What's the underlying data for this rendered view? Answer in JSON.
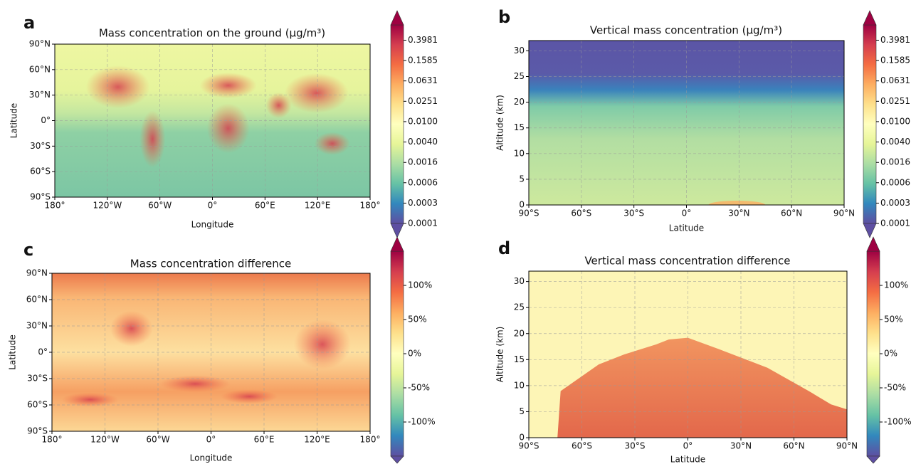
{
  "chart_data": [
    {
      "type": "heatmap",
      "letter": "a",
      "title": "Mass concentration on the ground (μg/m³)",
      "xlabel": "Longitude",
      "ylabel": "Latitude",
      "xlim": [
        -180,
        180
      ],
      "ylim": [
        -90,
        90
      ],
      "xticks": [
        {
          "value": -180,
          "label": "180°"
        },
        {
          "value": -120,
          "label": "120°W"
        },
        {
          "value": -60,
          "label": "60°W"
        },
        {
          "value": 0,
          "label": "0°"
        },
        {
          "value": 60,
          "label": "60°E"
        },
        {
          "value": 120,
          "label": "120°E"
        },
        {
          "value": 180,
          "label": "180°"
        }
      ],
      "yticks": [
        {
          "value": -90,
          "label": "90°S"
        },
        {
          "value": -60,
          "label": "60°S"
        },
        {
          "value": -30,
          "label": "30°S"
        },
        {
          "value": 0,
          "label": "0°"
        },
        {
          "value": 30,
          "label": "30°N"
        },
        {
          "value": 60,
          "label": "60°N"
        },
        {
          "value": 90,
          "label": "90°N"
        }
      ],
      "grid": true,
      "colorbar": {
        "scale": "log",
        "clim": [
          0.0001,
          0.7943
        ],
        "ticks": [
          0.3981,
          0.1585,
          0.0631,
          0.0251,
          {
            "value": 0.01,
            "label": "0.0100"
          },
          {
            "value": 0.00398,
            "label": "0.0040"
          },
          {
            "value": 0.00158,
            "label": "0.0016"
          },
          {
            "value": 0.000631,
            "label": "0.0006"
          },
          {
            "value": 0.000251,
            "label": "0.0003"
          },
          0.0001
        ],
        "colors": [
          "#5e4fa2",
          "#3288bd",
          "#66c2a5",
          "#abdda4",
          "#e6f598",
          "#ffffbf",
          "#fee08b",
          "#fdae61",
          "#f46d43",
          "#d53e4f",
          "#9e0142"
        ]
      }
    },
    {
      "type": "heatmap",
      "letter": "b",
      "title": "Vertical mass concentration (μg/m³)",
      "xlabel": "Latitude",
      "ylabel": "Altitude (km)",
      "xlim": [
        -90,
        90
      ],
      "ylim": [
        0,
        32
      ],
      "xticks": [
        {
          "value": -90,
          "label": "90°S"
        },
        {
          "value": -60,
          "label": "60°S"
        },
        {
          "value": -30,
          "label": "30°S"
        },
        {
          "value": 0,
          "label": "0°"
        },
        {
          "value": 30,
          "label": "30°N"
        },
        {
          "value": 60,
          "label": "60°N"
        },
        {
          "value": 90,
          "label": "90°N"
        }
      ],
      "yticks": [
        0,
        5,
        10,
        15,
        20,
        25,
        30
      ],
      "grid": true,
      "colorbar": {
        "scale": "log",
        "clim": [
          0.0001,
          0.7943
        ],
        "ticks": [
          0.3981,
          0.1585,
          0.0631,
          0.0251,
          {
            "value": 0.01,
            "label": "0.0100"
          },
          {
            "value": 0.00398,
            "label": "0.0040"
          },
          {
            "value": 0.00158,
            "label": "0.0016"
          },
          {
            "value": 0.000631,
            "label": "0.0006"
          },
          {
            "value": 0.000251,
            "label": "0.0003"
          },
          0.0001
        ],
        "colors": [
          "#5e4fa2",
          "#3288bd",
          "#66c2a5",
          "#abdda4",
          "#e6f598",
          "#ffffbf",
          "#fee08b",
          "#fdae61",
          "#f46d43",
          "#d53e4f",
          "#9e0142"
        ]
      }
    },
    {
      "type": "heatmap",
      "letter": "c",
      "title": "Mass concentration difference",
      "xlabel": "Longitude",
      "ylabel": "Latitude",
      "xlim": [
        -180,
        180
      ],
      "ylim": [
        -90,
        90
      ],
      "xticks": [
        {
          "value": -180,
          "label": "180°"
        },
        {
          "value": -120,
          "label": "120°W"
        },
        {
          "value": -60,
          "label": "60°W"
        },
        {
          "value": 0,
          "label": "0°"
        },
        {
          "value": 60,
          "label": "60°E"
        },
        {
          "value": 120,
          "label": "120°E"
        },
        {
          "value": 180,
          "label": "180°"
        }
      ],
      "yticks": [
        {
          "value": -90,
          "label": "90°S"
        },
        {
          "value": -60,
          "label": "60°S"
        },
        {
          "value": -30,
          "label": "30°S"
        },
        {
          "value": 0,
          "label": "0°"
        },
        {
          "value": 30,
          "label": "30°N"
        },
        {
          "value": 60,
          "label": "60°N"
        },
        {
          "value": 90,
          "label": "90°N"
        }
      ],
      "grid": true,
      "colorbar": {
        "scale": "linear",
        "clim": [
          -150,
          150
        ],
        "ticks": [
          {
            "value": 100,
            "label": "100%"
          },
          {
            "value": 50,
            "label": "50%"
          },
          {
            "value": 0,
            "label": "0%"
          },
          {
            "value": -50,
            "label": "-50%"
          },
          {
            "value": -100,
            "label": "-100%"
          }
        ],
        "colors": [
          "#5e4fa2",
          "#3288bd",
          "#66c2a5",
          "#abdda4",
          "#e6f598",
          "#ffffbf",
          "#fee08b",
          "#fdae61",
          "#f46d43",
          "#d53e4f",
          "#9e0142"
        ]
      }
    },
    {
      "type": "heatmap",
      "letter": "d",
      "title": "Vertical mass concentration difference",
      "xlabel": "Latitude",
      "ylabel": "Altitude (km)",
      "xlim": [
        -90,
        90
      ],
      "ylim": [
        0,
        32
      ],
      "xticks": [
        {
          "value": -90,
          "label": "90°S"
        },
        {
          "value": -60,
          "label": "60°S"
        },
        {
          "value": -30,
          "label": "30°S"
        },
        {
          "value": 0,
          "label": "0°"
        },
        {
          "value": 30,
          "label": "30°N"
        },
        {
          "value": 60,
          "label": "60°N"
        },
        {
          "value": 90,
          "label": "90°N"
        }
      ],
      "yticks": [
        0,
        5,
        10,
        15,
        20,
        25,
        30
      ],
      "grid": true,
      "colorbar": {
        "scale": "linear",
        "clim": [
          -150,
          150
        ],
        "ticks": [
          {
            "value": 100,
            "label": "100%"
          },
          {
            "value": 50,
            "label": "50%"
          },
          {
            "value": 0,
            "label": "0%"
          },
          {
            "value": -50,
            "label": "-50%"
          },
          {
            "value": -100,
            "label": "-100%"
          }
        ],
        "colors": [
          "#5e4fa2",
          "#3288bd",
          "#66c2a5",
          "#abdda4",
          "#e6f598",
          "#ffffbf",
          "#fee08b",
          "#fdae61",
          "#f46d43",
          "#d53e4f",
          "#9e0142"
        ]
      }
    }
  ]
}
